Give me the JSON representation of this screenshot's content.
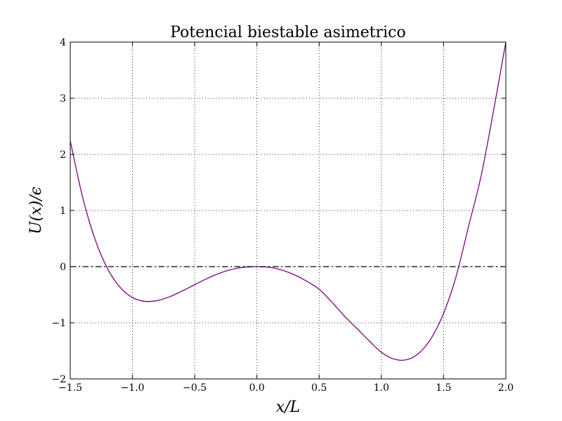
{
  "chart_data": {
    "type": "line",
    "title": "Potencial biestable asimetrico",
    "xlabel": "x/L",
    "ylabel": "U(x)/ϵ",
    "xlim": [
      -1.5,
      2.0
    ],
    "ylim": [
      -2,
      4
    ],
    "xticks": [
      -1.5,
      -1.0,
      -0.5,
      0.0,
      0.5,
      1.0,
      1.5,
      2.0
    ],
    "xtick_labels": [
      "−1.5",
      "−1.0",
      "−0.5",
      "0.0",
      "0.5",
      "1.0",
      "1.5",
      "2.0"
    ],
    "yticks": [
      -2,
      -1,
      0,
      1,
      2,
      3,
      4
    ],
    "ytick_labels": [
      "−2",
      "−1",
      "0",
      "1",
      "2",
      "3",
      "4"
    ],
    "grid": true,
    "series": [
      {
        "color": "#800080",
        "style": "solid",
        "x": [
          -1.5,
          -1.4,
          -1.3,
          -1.2,
          -1.1,
          -1.0,
          -0.9,
          -0.8,
          -0.7,
          -0.6,
          -0.5,
          -0.4,
          -0.3,
          -0.2,
          -0.1,
          0.0,
          0.1,
          0.2,
          0.3,
          0.4,
          0.5,
          0.6,
          0.7,
          0.8,
          0.9,
          1.0,
          1.1,
          1.2,
          1.3,
          1.4,
          1.5,
          1.6,
          1.7,
          1.8,
          1.9,
          2.0
        ],
        "y": [
          2.241,
          1.232,
          0.482,
          -0.037,
          -0.368,
          -0.55,
          -0.618,
          -0.604,
          -0.535,
          -0.434,
          -0.322,
          -0.212,
          -0.117,
          -0.048,
          -0.011,
          0.0,
          -0.012,
          -0.061,
          -0.144,
          -0.26,
          -0.403,
          -0.626,
          -0.874,
          -1.094,
          -1.317,
          -1.526,
          -1.646,
          -1.66,
          -1.546,
          -1.279,
          -0.833,
          -0.18,
          0.711,
          1.6,
          2.76,
          4.0
        ]
      },
      {
        "color": "#000000",
        "style": "dash-dot",
        "x": [
          -1.5,
          2.0
        ],
        "y": [
          0,
          0
        ]
      }
    ]
  }
}
